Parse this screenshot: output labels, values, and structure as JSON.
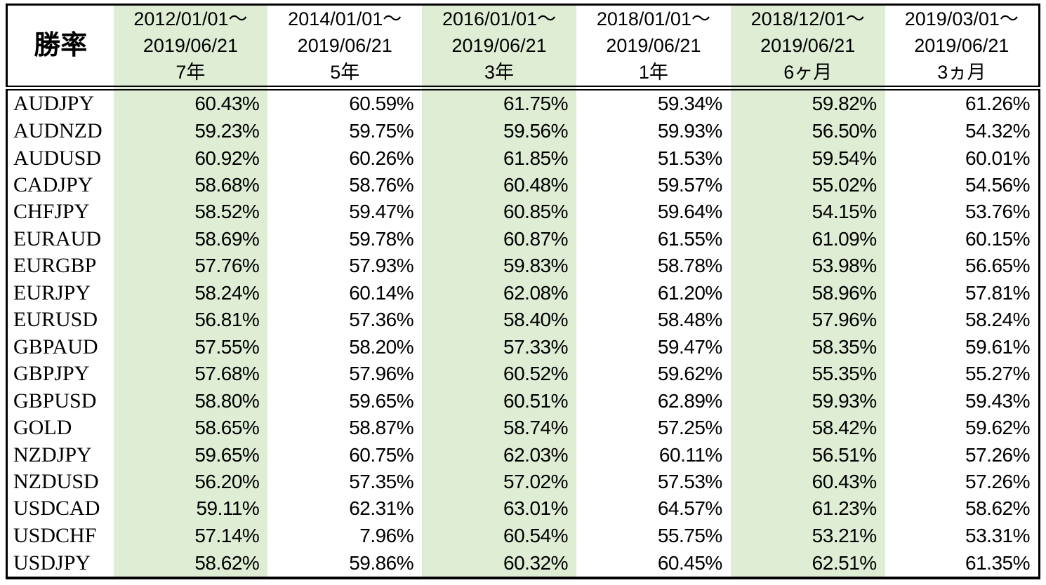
{
  "chart_data": {
    "type": "table",
    "corner_label": "勝率",
    "value_format": "percent",
    "value_suffix": "%",
    "columns": [
      {
        "period_start": "2012/01/01～",
        "period_end": "2019/06/21",
        "duration": "7年",
        "highlighted": true
      },
      {
        "period_start": "2014/01/01～",
        "period_end": "2019/06/21",
        "duration": "5年",
        "highlighted": false
      },
      {
        "period_start": "2016/01/01～",
        "period_end": "2019/06/21",
        "duration": "3年",
        "highlighted": true
      },
      {
        "period_start": "2018/01/01～",
        "period_end": "2019/06/21",
        "duration": "1年",
        "highlighted": false
      },
      {
        "period_start": "2018/12/01～",
        "period_end": "2019/06/21",
        "duration": "6ヶ月",
        "highlighted": true
      },
      {
        "period_start": "2019/03/01～",
        "period_end": "2019/06/21",
        "duration": "3ヵ月",
        "highlighted": false
      }
    ],
    "rows": [
      {
        "pair": "AUDJPY",
        "values": [
          60.43,
          60.59,
          61.75,
          59.34,
          59.82,
          61.26
        ]
      },
      {
        "pair": "AUDNZD",
        "values": [
          59.23,
          59.75,
          59.56,
          59.93,
          56.5,
          54.32
        ]
      },
      {
        "pair": "AUDUSD",
        "values": [
          60.92,
          60.26,
          61.85,
          51.53,
          59.54,
          60.01
        ]
      },
      {
        "pair": "CADJPY",
        "values": [
          58.68,
          58.76,
          60.48,
          59.57,
          55.02,
          54.56
        ]
      },
      {
        "pair": "CHFJPY",
        "values": [
          58.52,
          59.47,
          60.85,
          59.64,
          54.15,
          53.76
        ]
      },
      {
        "pair": "EURAUD",
        "values": [
          58.69,
          59.78,
          60.87,
          61.55,
          61.09,
          60.15
        ]
      },
      {
        "pair": "EURGBP",
        "values": [
          57.76,
          57.93,
          59.83,
          58.78,
          53.98,
          56.65
        ]
      },
      {
        "pair": "EURJPY",
        "values": [
          58.24,
          60.14,
          62.08,
          61.2,
          58.96,
          57.81
        ]
      },
      {
        "pair": "EURUSD",
        "values": [
          56.81,
          57.36,
          58.4,
          58.48,
          57.96,
          58.24
        ]
      },
      {
        "pair": "GBPAUD",
        "values": [
          57.55,
          58.2,
          57.33,
          59.47,
          58.35,
          59.61
        ]
      },
      {
        "pair": "GBPJPY",
        "values": [
          57.68,
          57.96,
          60.52,
          59.62,
          55.35,
          55.27
        ]
      },
      {
        "pair": "GBPUSD",
        "values": [
          58.8,
          59.65,
          60.51,
          62.89,
          59.93,
          59.43
        ]
      },
      {
        "pair": "GOLD",
        "values": [
          58.65,
          58.87,
          58.74,
          57.25,
          58.42,
          59.62
        ]
      },
      {
        "pair": "NZDJPY",
        "values": [
          59.65,
          60.75,
          62.03,
          60.11,
          56.51,
          57.26
        ]
      },
      {
        "pair": "NZDUSD",
        "values": [
          56.2,
          57.35,
          57.02,
          57.53,
          60.43,
          57.26
        ]
      },
      {
        "pair": "USDCAD",
        "values": [
          59.11,
          62.31,
          63.01,
          64.57,
          61.23,
          58.62
        ]
      },
      {
        "pair": "USDCHF",
        "values": [
          57.14,
          7.96,
          60.54,
          55.75,
          53.21,
          53.31
        ]
      },
      {
        "pair": "USDJPY",
        "values": [
          58.62,
          59.86,
          60.32,
          60.45,
          62.51,
          61.35
        ]
      }
    ]
  },
  "colors": {
    "highlight": "#dfedd5",
    "border": "#000000",
    "background": "#ffffff",
    "text": "#000000"
  }
}
